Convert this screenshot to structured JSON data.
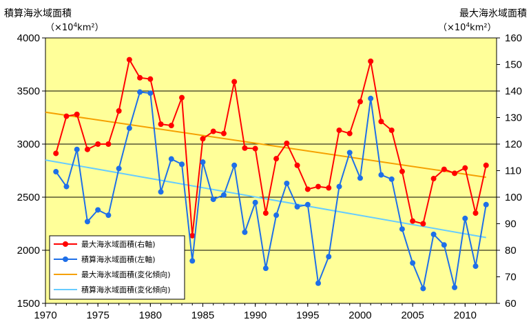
{
  "chart_data": {
    "type": "line",
    "x": [
      1971,
      1972,
      1973,
      1974,
      1975,
      1976,
      1977,
      1978,
      1979,
      1980,
      1981,
      1982,
      1983,
      1984,
      1985,
      1986,
      1987,
      1988,
      1989,
      1990,
      1991,
      1992,
      1993,
      1994,
      1995,
      1996,
      1997,
      1998,
      1999,
      2000,
      2001,
      2002,
      2003,
      2004,
      2005,
      2006,
      2007,
      2008,
      2009,
      2010,
      2011,
      2012
    ],
    "xlim": [
      1970,
      2013
    ],
    "x_ticks": [
      "1970",
      "1975",
      "1980",
      "1985",
      "1990",
      "1995",
      "2000",
      "2005",
      "2010"
    ],
    "x_tick_values": [
      1970,
      1975,
      1980,
      1985,
      1990,
      1995,
      2000,
      2005,
      2010
    ],
    "left_axis": {
      "title": "積算海氷域面積",
      "unit_prefix": "（×10",
      "unit_exp": "4",
      "unit_suffix": "km²）",
      "ylim": [
        1500,
        4000
      ],
      "ticks": [
        "1500",
        "2000",
        "2500",
        "3000",
        "3500",
        "4000"
      ],
      "tick_values": [
        1500,
        2000,
        2500,
        3000,
        3500,
        4000
      ]
    },
    "right_axis": {
      "title": "最大海氷域面積",
      "unit_prefix": "（×10",
      "unit_exp": "4",
      "unit_suffix": "km²）",
      "ylim": [
        60,
        160
      ],
      "ticks": [
        "60",
        "70",
        "80",
        "90",
        "100",
        "110",
        "120",
        "130",
        "140",
        "150",
        "160"
      ],
      "tick_values": [
        60,
        70,
        80,
        90,
        100,
        110,
        120,
        130,
        140,
        150,
        160
      ]
    },
    "series": [
      {
        "name": "最大海氷域面積(右軸)",
        "axis": "right",
        "color": "#ff0000",
        "marker": true,
        "values": [
          116.5,
          130.5,
          131.2,
          118,
          120,
          120,
          132.5,
          151.8,
          145,
          144.5,
          127.5,
          127,
          137.5,
          85.5,
          122,
          124.8,
          124,
          143.5,
          118.5,
          118.3,
          94,
          114.5,
          120.3,
          112,
          103,
          104,
          103.5,
          125.2,
          124,
          136,
          151.2,
          128.5,
          125.2,
          109.7,
          91,
          90,
          107,
          110.5,
          109,
          111,
          94,
          112
        ]
      },
      {
        "name": "積算海氷域面積(左軸)",
        "axis": "left",
        "color": "#1e6fe8",
        "marker": true,
        "values": [
          2740,
          2600,
          2950,
          2270,
          2380,
          2330,
          2770,
          3150,
          3490,
          3480,
          2550,
          2860,
          2810,
          1900,
          2830,
          2480,
          2520,
          2800,
          2170,
          2450,
          1830,
          2330,
          2630,
          2410,
          2430,
          1690,
          1940,
          2600,
          2920,
          2680,
          3430,
          2710,
          2670,
          2200,
          1880,
          1640,
          2150,
          2050,
          1650,
          2300,
          1850,
          2430
        ]
      },
      {
        "name": "最大海氷域面積(変化傾向)",
        "axis": "right",
        "color": "#f5a000",
        "marker": false,
        "trend": {
          "x": [
            1970,
            2012
          ],
          "values": [
            132,
            107.5
          ]
        }
      },
      {
        "name": "積算海氷域面積(変化傾向)",
        "axis": "left",
        "color": "#66ccff",
        "marker": false,
        "trend": {
          "x": [
            1970,
            2012
          ],
          "values": [
            2850,
            2120
          ]
        }
      }
    ],
    "grid": true,
    "legend_position": "bottom-left",
    "plot_background": "#ffff99"
  }
}
